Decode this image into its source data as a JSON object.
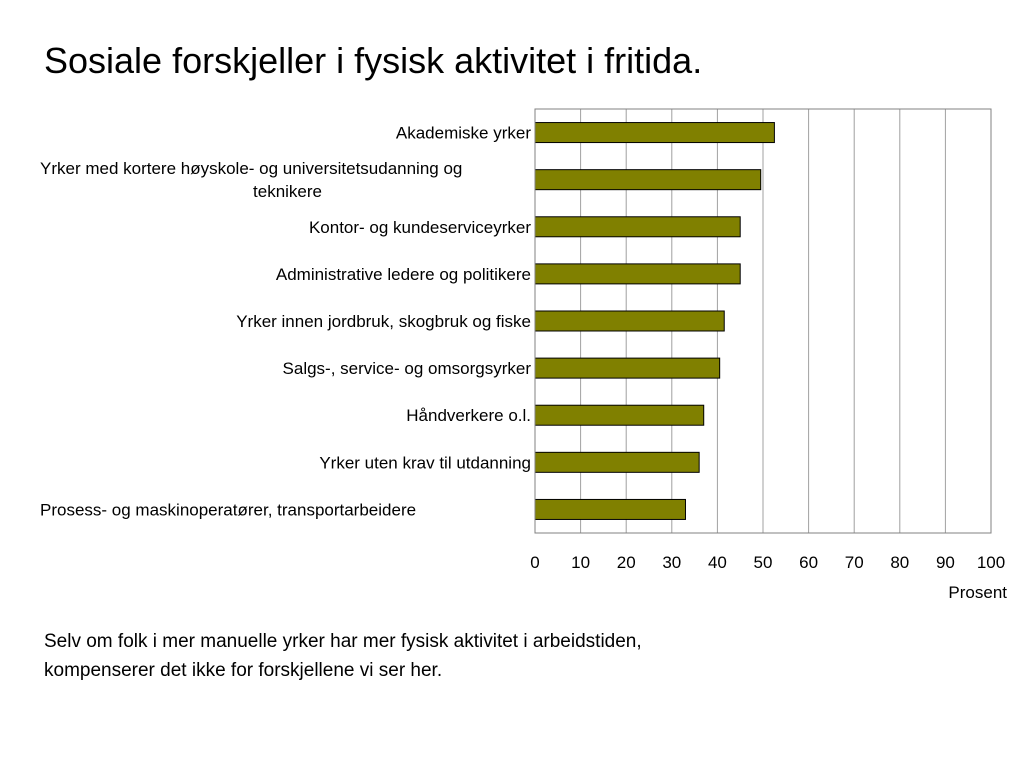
{
  "slide": {
    "title": "Sosiale forskjeller i fysisk aktivitet i fritida.",
    "caption_lines": [
      "Selv om folk i mer manuelle yrker har mer fysisk aktivitet i arbeidstiden,",
      "kompenserer det ikke for forskjellene vi ser her."
    ]
  },
  "chart_data": {
    "type": "bar",
    "orientation": "horizontal",
    "categories": [
      "Akademiske yrker",
      "Yrker med kortere høyskole- og universitetsudanning og teknikere",
      "Kontor- og kundeserviceyrker",
      "Administrative ledere og politikere",
      "Yrker innen jordbruk, skogbruk og fiske",
      "Salgs-, service- og omsorgsyrker",
      "Håndverkere o.l.",
      "Yrker uten krav til utdanning",
      "Prosess- og maskinoperatører, transportarbeidere"
    ],
    "category_lines": [
      [
        "Akademiske yrker"
      ],
      [
        "Yrker med kortere høyskole- og universitetsudanning og",
        "teknikere"
      ],
      [
        "Kontor- og kundeserviceyrker"
      ],
      [
        "Administrative ledere og politikere"
      ],
      [
        "Yrker innen jordbruk, skogbruk og fiske"
      ],
      [
        "Salgs-, service- og omsorgsyrker"
      ],
      [
        "Håndverkere o.l."
      ],
      [
        "Yrker uten krav til utdanning"
      ],
      [
        "Prosess- og maskinoperatører, transportarbeidere"
      ]
    ],
    "values": [
      52.5,
      49.5,
      45,
      45,
      41.5,
      40.5,
      37,
      36,
      33
    ],
    "xlim": [
      0,
      100
    ],
    "xticks": [
      "0",
      "10",
      "20",
      "30",
      "40",
      "50",
      "60",
      "70",
      "80",
      "90",
      "100"
    ],
    "xlabel": "Prosent",
    "grid": "vertical",
    "bar_color": "#808000"
  }
}
